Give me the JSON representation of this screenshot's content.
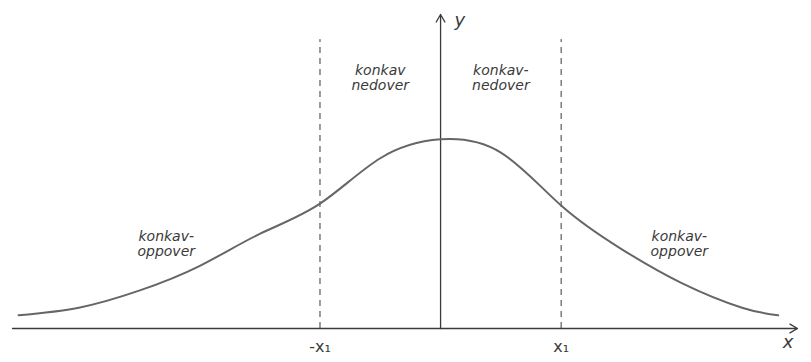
{
  "chart_data": {
    "type": "line",
    "x_label": "x",
    "y_label": "y",
    "x": [
      -3.5,
      -3,
      -2.5,
      -2,
      -1.5,
      -1,
      -0.5,
      0,
      0.5,
      1,
      1.5,
      2,
      2.5,
      2.8
    ],
    "values": [
      0.07,
      0.11,
      0.2,
      0.33,
      0.5,
      0.66,
      0.9,
      1,
      0.93,
      0.65,
      0.42,
      0.24,
      0.11,
      0.07
    ],
    "color": "#666666",
    "xlim": [
      -3.55,
      2.96
    ],
    "ylim": [
      0,
      1.66
    ],
    "xticks": [
      {
        "value": -1,
        "label": "-x₁"
      },
      {
        "value": 1,
        "label": "x₁"
      }
    ],
    "tick_labels": "x",
    "annotations": [
      "konkav-\noppover",
      "konkav\nnedover",
      "konkav-\nnedover",
      "konkav-\noppover"
    ]
  }
}
